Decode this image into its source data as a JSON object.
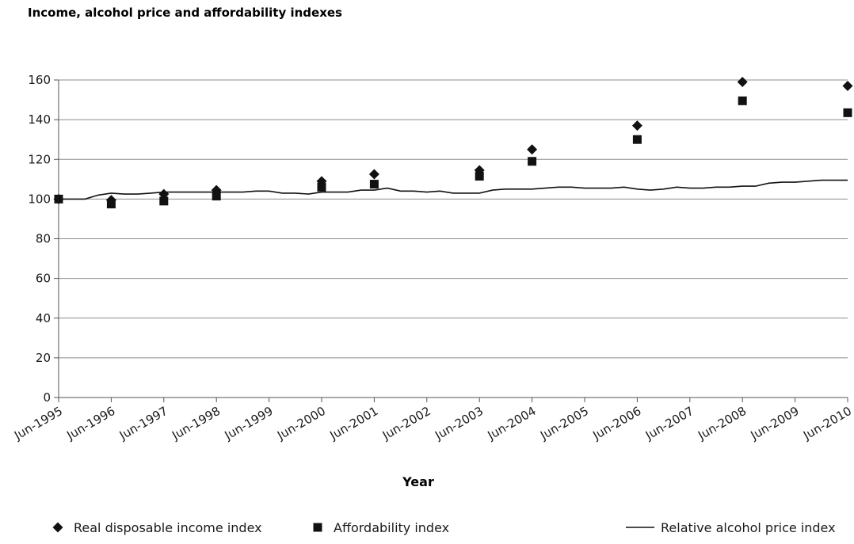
{
  "chart_data": {
    "type": "line",
    "title": "Income, alcohol price and affordability indexes",
    "xlabel": "Year",
    "ylabel": "",
    "ylim": [
      0,
      160
    ],
    "yticks": [
      0,
      20,
      40,
      60,
      80,
      100,
      120,
      140,
      160
    ],
    "categories": [
      "Jun-1995",
      "Jun-1996",
      "Jun-1997",
      "Jun-1998",
      "Jun-1999",
      "Jun-2000",
      "Jun-2001",
      "Jun-2002",
      "Jun-2003",
      "Jun-2004",
      "Jun-2005",
      "Jun-2006",
      "Jun-2007",
      "Jun-2008",
      "Jun-2009",
      "Jun-2010"
    ],
    "grid": true,
    "legend_position": "bottom",
    "series": [
      {
        "name": "Real disposable income index",
        "marker": "diamond",
        "x": [
          1995,
          1996,
          1997,
          1998,
          2000,
          2001,
          2003,
          2004,
          2006,
          2008,
          2010
        ],
        "values": [
          100,
          99.5,
          102.5,
          104.5,
          109,
          112.5,
          114.5,
          125,
          137,
          159,
          157
        ]
      },
      {
        "name": "Affordability index",
        "marker": "square",
        "x": [
          1995,
          1996,
          1997,
          1998,
          2000,
          2001,
          2003,
          2004,
          2006,
          2008,
          2010
        ],
        "values": [
          100,
          97.5,
          99,
          101.5,
          106,
          107.5,
          111.5,
          119,
          130,
          149.5,
          143.5
        ]
      },
      {
        "name": "Relative alcohol price index",
        "marker": "line",
        "x": [
          1995,
          1995.25,
          1995.5,
          1995.75,
          1996,
          1996.25,
          1996.5,
          1996.75,
          1997,
          1997.25,
          1997.5,
          1997.75,
          1998,
          1998.25,
          1998.5,
          1998.75,
          1999,
          1999.25,
          1999.5,
          1999.75,
          2000,
          2000.25,
          2000.5,
          2000.75,
          2001,
          2001.25,
          2001.5,
          2001.75,
          2002,
          2002.25,
          2002.5,
          2002.75,
          2003,
          2003.25,
          2003.5,
          2003.75,
          2004,
          2004.25,
          2004.5,
          2004.75,
          2005,
          2005.25,
          2005.5,
          2005.75,
          2006,
          2006.25,
          2006.5,
          2006.75,
          2007,
          2007.25,
          2007.5,
          2007.75,
          2008,
          2008.25,
          2008.5,
          2008.75,
          2009,
          2009.25,
          2009.5,
          2009.75,
          2010
        ],
        "values": [
          100,
          100,
          100,
          102,
          103,
          102.5,
          102.5,
          103,
          103.5,
          103.5,
          103.5,
          103.5,
          103.5,
          103.5,
          103.5,
          104,
          104,
          103,
          103,
          102.5,
          103.5,
          103.5,
          103.5,
          104.5,
          104.5,
          105.5,
          104,
          104,
          103.5,
          104,
          103,
          103,
          103,
          104.5,
          105,
          105,
          105,
          105.5,
          106,
          106,
          105.5,
          105.5,
          105.5,
          106,
          105,
          104.5,
          105,
          106,
          105.5,
          105.5,
          106,
          106,
          106.5,
          106.5,
          108,
          108.5,
          108.5,
          109,
          109.5,
          109.5,
          109.5
        ]
      }
    ]
  }
}
